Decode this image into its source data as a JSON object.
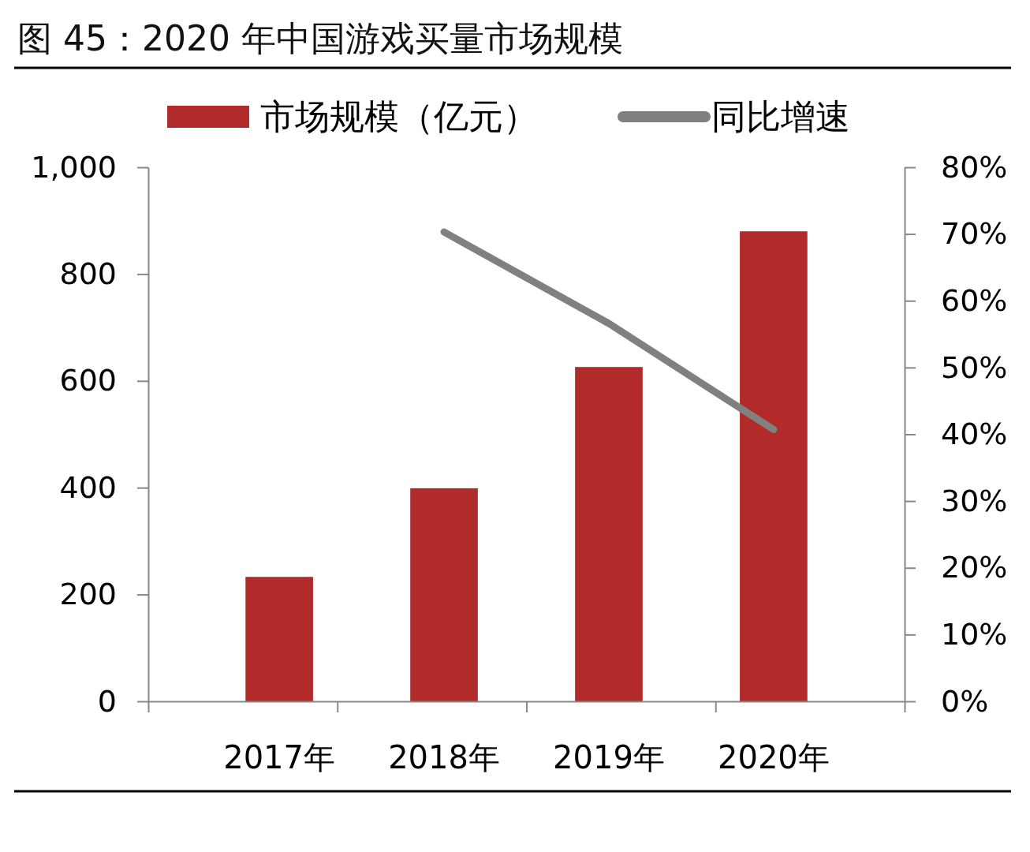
{
  "chart_data": {
    "type": "bar",
    "title": "图 45：2020 年中国游戏买量市场规模",
    "categories": [
      "2017年",
      "2018年",
      "2019年",
      "2020年"
    ],
    "series": [
      {
        "name": "市场规模（亿元）",
        "color": "#b22b2b",
        "values": [
          233,
          399,
          626,
          880
        ]
      },
      {
        "name": "同比增速",
        "type": "line",
        "axis": "y2",
        "color": "#808080",
        "values": [
          null,
          70.3,
          56.6,
          40.7
        ]
      }
    ],
    "ylim": [
      0,
      1000
    ],
    "yticks": [
      0,
      200,
      400,
      600,
      800,
      {
        "value": 1000,
        "label": "1,000"
      }
    ],
    "y2lim": [
      0,
      80
    ],
    "y2ticks": [
      {
        "value": 0,
        "label": "0%"
      },
      {
        "value": 10,
        "label": "10%"
      },
      {
        "value": 20,
        "label": "20%"
      },
      {
        "value": 30,
        "label": "30%"
      },
      {
        "value": 40,
        "label": "40%"
      },
      {
        "value": 50,
        "label": "50%"
      },
      {
        "value": 60,
        "label": "60%"
      },
      {
        "value": 70,
        "label": "70%"
      },
      {
        "value": 80,
        "label": "80%"
      }
    ],
    "legend": "top",
    "grid": false,
    "marker": "none",
    "line_style": "solid"
  }
}
